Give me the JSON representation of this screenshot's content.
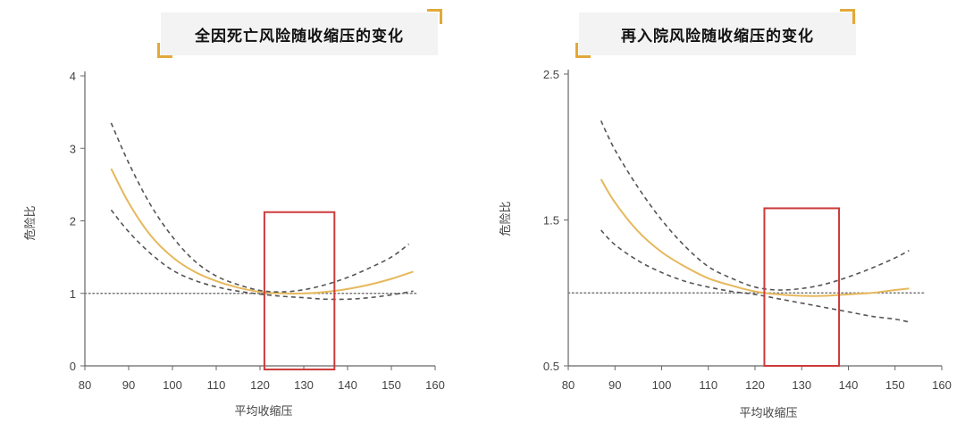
{
  "colors": {
    "estimate": "#e6b85c",
    "ci": "#555555",
    "reference": "#777777",
    "highlight": "#cc3b3b",
    "accent": "#e2a93a"
  },
  "chart_data": [
    {
      "type": "line",
      "title": "全因死亡风险随收缩压的变化",
      "xlabel": "平均收缩压",
      "ylabel": "危险比",
      "xlim": [
        80,
        160
      ],
      "ylim": [
        0,
        4
      ],
      "xticks": [
        80,
        90,
        100,
        110,
        120,
        130,
        140,
        150,
        160
      ],
      "yticks": [
        0,
        1,
        2,
        3,
        4
      ],
      "ytick_labels": [
        "0",
        "1",
        "2",
        "3",
        "4"
      ],
      "reference_line": 1,
      "highlight_range": {
        "x": [
          121,
          137
        ],
        "y": [
          -0.05,
          2.12
        ]
      },
      "series": [
        {
          "role": "estimate",
          "style": "solid",
          "x": [
            86,
            90,
            95,
            100,
            105,
            110,
            115,
            120,
            125,
            130,
            135,
            140,
            145,
            150,
            155
          ],
          "y": [
            2.72,
            2.25,
            1.8,
            1.5,
            1.3,
            1.17,
            1.08,
            1.02,
            1.0,
            1.0,
            1.02,
            1.06,
            1.12,
            1.2,
            1.3
          ]
        },
        {
          "role": "upper_ci",
          "style": "dashed",
          "x": [
            86,
            90,
            95,
            100,
            105,
            110,
            115,
            120,
            125,
            130,
            135,
            140,
            145,
            150,
            154
          ],
          "y": [
            3.35,
            2.8,
            2.22,
            1.78,
            1.45,
            1.24,
            1.12,
            1.04,
            1.02,
            1.05,
            1.12,
            1.22,
            1.35,
            1.5,
            1.68
          ]
        },
        {
          "role": "lower_ci",
          "style": "dashed",
          "x": [
            86,
            90,
            95,
            100,
            105,
            110,
            115,
            120,
            125,
            130,
            135,
            140,
            145,
            150,
            155
          ],
          "y": [
            2.15,
            1.85,
            1.55,
            1.32,
            1.18,
            1.09,
            1.03,
            0.99,
            0.96,
            0.94,
            0.92,
            0.92,
            0.94,
            0.98,
            1.03
          ]
        }
      ]
    },
    {
      "type": "line",
      "title": "再入院风险随收缩压的变化",
      "xlabel": "平均收缩压",
      "ylabel": "危险比",
      "xlim": [
        80,
        160
      ],
      "ylim": [
        0.5,
        2.5
      ],
      "xticks": [
        80,
        90,
        100,
        110,
        120,
        130,
        140,
        150,
        160
      ],
      "yticks": [
        0.5,
        1.5,
        2.5
      ],
      "ytick_labels": [
        "0.5",
        "1.5",
        "2.5"
      ],
      "reference_line": 1.0,
      "highlight_range": {
        "x": [
          122,
          138
        ],
        "y": [
          0.5,
          1.58
        ]
      },
      "series": [
        {
          "role": "estimate",
          "style": "solid",
          "x": [
            87,
            90,
            95,
            100,
            105,
            110,
            115,
            120,
            125,
            130,
            135,
            140,
            145,
            150,
            153
          ],
          "y": [
            1.78,
            1.62,
            1.42,
            1.28,
            1.18,
            1.1,
            1.05,
            1.01,
            0.99,
            0.98,
            0.98,
            0.99,
            1.0,
            1.02,
            1.03
          ]
        },
        {
          "role": "upper_ci",
          "style": "dashed",
          "x": [
            87,
            90,
            95,
            100,
            105,
            110,
            115,
            120,
            125,
            130,
            135,
            140,
            145,
            150,
            153
          ],
          "y": [
            2.18,
            1.98,
            1.72,
            1.5,
            1.32,
            1.18,
            1.1,
            1.04,
            1.02,
            1.03,
            1.06,
            1.11,
            1.17,
            1.24,
            1.29
          ]
        },
        {
          "role": "lower_ci",
          "style": "dashed",
          "x": [
            87,
            90,
            95,
            100,
            105,
            110,
            115,
            120,
            125,
            130,
            135,
            140,
            145,
            150,
            153
          ],
          "y": [
            1.43,
            1.33,
            1.22,
            1.14,
            1.08,
            1.04,
            1.01,
            0.99,
            0.96,
            0.93,
            0.9,
            0.87,
            0.84,
            0.82,
            0.8
          ]
        }
      ]
    }
  ]
}
